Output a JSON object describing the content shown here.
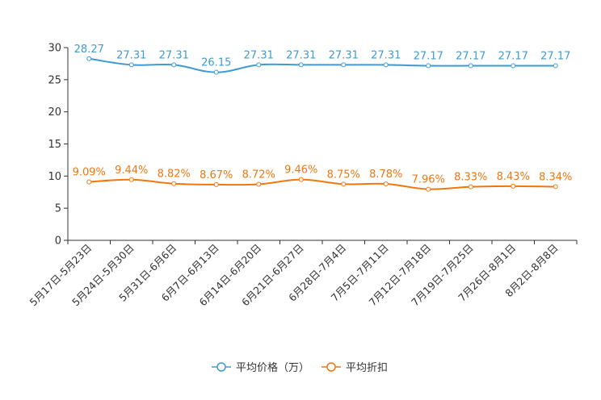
{
  "chart_data": {
    "type": "line",
    "title": "",
    "xlabel": "",
    "ylabel": "",
    "ylim": [
      0,
      30
    ],
    "yticks": [
      0,
      5,
      10,
      15,
      20,
      25,
      30
    ],
    "grid": false,
    "legend_position": "bottom",
    "categories": [
      "5月17日-5月23日",
      "5月24日-5月30日",
      "5月31日-6月6日",
      "6月7日-6月13日",
      "6月14日-6月20日",
      "6月21日-6月27日",
      "6月28日-7月4日",
      "7月5日-7月11日",
      "7月12日-7月18日",
      "7月19日-7月25日",
      "7月26日-8月1日",
      "8月2日-8月8日"
    ],
    "series": [
      {
        "name": "平均价格（万）",
        "color": "#3d9bd1",
        "values": [
          28.27,
          27.31,
          27.31,
          26.15,
          27.31,
          27.31,
          27.31,
          27.31,
          27.17,
          27.17,
          27.17,
          27.17
        ],
        "labels": [
          "28.27",
          "27.31",
          "27.31",
          "26.15",
          "27.31",
          "27.31",
          "27.31",
          "27.31",
          "27.17",
          "27.17",
          "27.17",
          "27.17"
        ]
      },
      {
        "name": "平均折扣",
        "color": "#f0770f",
        "values": [
          9.09,
          9.44,
          8.82,
          8.67,
          8.72,
          9.46,
          8.75,
          8.78,
          7.96,
          8.33,
          8.43,
          8.34
        ],
        "labels": [
          "9.09%",
          "9.44%",
          "8.82%",
          "8.67%",
          "8.72%",
          "9.46%",
          "8.75%",
          "8.78%",
          "7.96%",
          "8.33%",
          "8.43%",
          "8.34%"
        ]
      }
    ]
  }
}
